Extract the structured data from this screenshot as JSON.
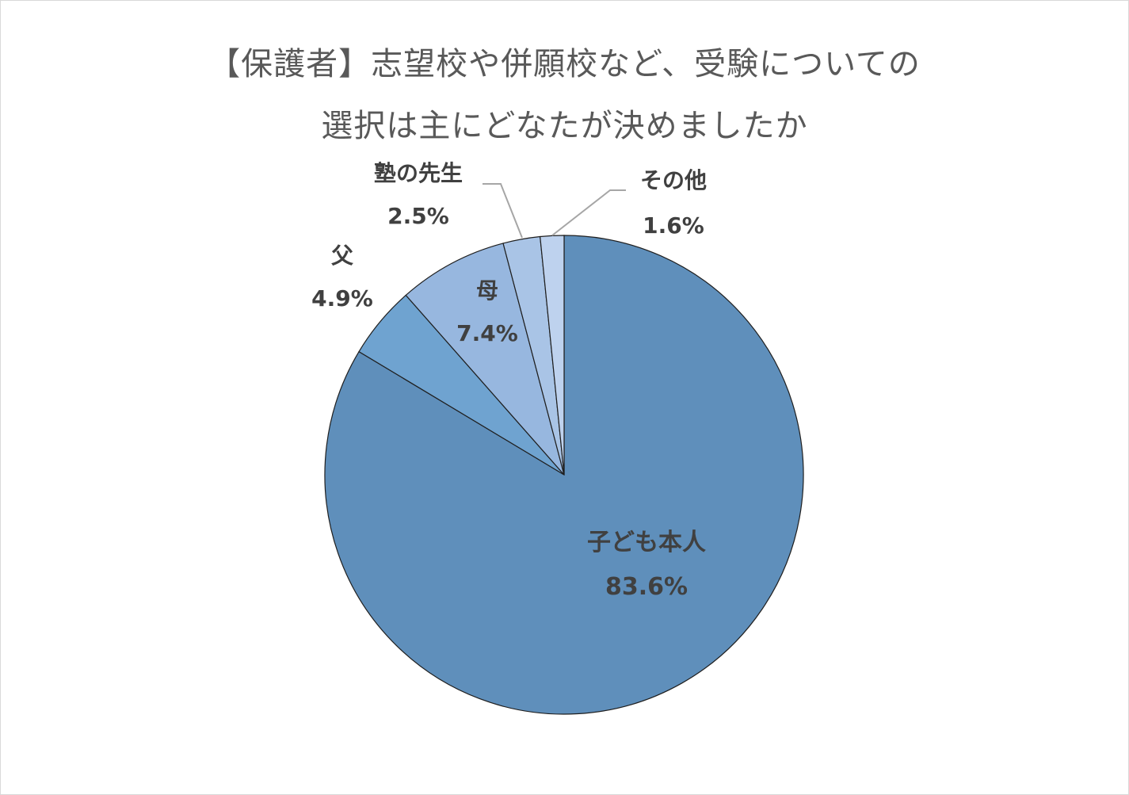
{
  "chart_data": {
    "type": "pie",
    "title_line1": "【保護者】志望校や併願校など、受験についての",
    "title_line2": "選択は主にどなたが決めましたか",
    "slices": [
      {
        "label": "子ども本人",
        "value": 83.6,
        "value_text": "83.6%",
        "color": "#5f8fbb"
      },
      {
        "label": "父",
        "value": 4.9,
        "value_text": "4.9%",
        "color": "#6fa3d0"
      },
      {
        "label": "母",
        "value": 7.4,
        "value_text": "7.4%",
        "color": "#97b7df"
      },
      {
        "label": "塾の先生",
        "value": 2.5,
        "value_text": "2.5%",
        "color": "#a9c4e6"
      },
      {
        "label": "その他",
        "value": 1.6,
        "value_text": "1.6%",
        "color": "#bed2ee"
      }
    ],
    "start_angle": "12 o'clock",
    "direction": "clockwise",
    "legend": "none",
    "data_labels": "category name and percentage"
  }
}
